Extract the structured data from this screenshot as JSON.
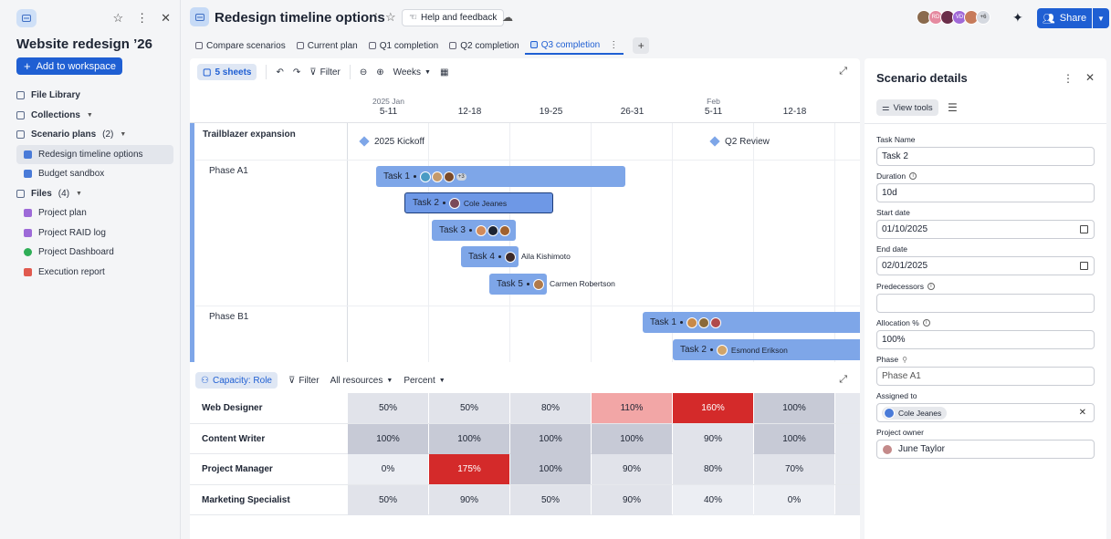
{
  "sidebar": {
    "title": "Website redesign ’26",
    "add_button": "Add to workspace",
    "items": [
      {
        "label": "File Library",
        "color": "#5b6b8a"
      },
      {
        "label": "Collections",
        "color": "#5b6b8a"
      },
      {
        "label": "Scenario plans",
        "count": "(2)",
        "color": "#5b6b8a"
      },
      {
        "label": "Redesign timeline options",
        "color": "#4a7bd8"
      },
      {
        "label": "Budget sandbox",
        "color": "#4a7bd8"
      },
      {
        "label": "Files",
        "count": "(4)",
        "color": "#5b6b8a"
      },
      {
        "label": "Project plan",
        "color": "#9d6ad8"
      },
      {
        "label": "Project RAID log",
        "color": "#9d6ad8"
      },
      {
        "label": "Project Dashboard",
        "color": "#2fae57"
      },
      {
        "label": "Execution report",
        "color": "#e05a4f"
      }
    ]
  },
  "header": {
    "title": "Redesign timeline options",
    "help": "Help and feedback",
    "share": "Share",
    "avatar_initials": [
      "RD",
      "VD"
    ],
    "avatar_more": "+6"
  },
  "tabs": [
    "Compare scenarios",
    "Current plan",
    "Q1 completion",
    "Q2 completion",
    "Q3 completion"
  ],
  "toolbar": {
    "sheets": "5 sheets",
    "filter": "Filter",
    "timescale": "Weeks"
  },
  "gantt": {
    "columns": [
      {
        "month": "2025 Jan",
        "range": "5-11"
      },
      {
        "month": "",
        "range": "12-18"
      },
      {
        "month": "",
        "range": "19-25"
      },
      {
        "month": "",
        "range": "26-31"
      },
      {
        "month": "Feb",
        "range": "5-11"
      },
      {
        "month": "",
        "range": "12-18"
      }
    ],
    "group": "Trailblazer expansion",
    "milestones": [
      "2025 Kickoff",
      "Q2 Review"
    ],
    "phases": [
      "Phase A1",
      "Phase B1"
    ],
    "tasks_a1": [
      {
        "label": "Task 1",
        "assignee": "",
        "more": "+3"
      },
      {
        "label": "Task 2",
        "assignee": "Cole Jeanes"
      },
      {
        "label": "Task 3",
        "assignee": ""
      },
      {
        "label": "Task 4",
        "assignee": "Aila Kishimoto"
      },
      {
        "label": "Task 5",
        "assignee": "Carmen Robertson"
      }
    ],
    "tasks_b1": [
      {
        "label": "Task 1",
        "assignee": ""
      },
      {
        "label": "Task 2",
        "assignee": "Esmond Erikson"
      }
    ]
  },
  "capacity": {
    "view": "Capacity: Role",
    "filter": "Filter",
    "resources": "All resources",
    "unit": "Percent",
    "rows": [
      {
        "role": "Web Designer",
        "values": [
          "50%",
          "50%",
          "80%",
          "110%",
          "160%",
          "100%"
        ]
      },
      {
        "role": "Content Writer",
        "values": [
          "100%",
          "100%",
          "100%",
          "100%",
          "90%",
          "100%"
        ]
      },
      {
        "role": "Project Manager",
        "values": [
          "0%",
          "175%",
          "100%",
          "90%",
          "80%",
          "70%"
        ]
      },
      {
        "role": "Marketing Specialist",
        "values": [
          "50%",
          "90%",
          "50%",
          "90%",
          "40%",
          "0%"
        ]
      }
    ],
    "colors": {
      "over_high": "#d42a2a",
      "over_low": "#f2a6a6",
      "full": "#c7cad6",
      "normal": "#e1e3ea",
      "low": "#eceef3"
    }
  },
  "details": {
    "title": "Scenario details",
    "view_tools": "View tools",
    "fields": {
      "task_name": {
        "label": "Task Name",
        "value": "Task 2"
      },
      "duration": {
        "label": "Duration",
        "value": "10d"
      },
      "start_date": {
        "label": "Start date",
        "value": "01/10/2025"
      },
      "end_date": {
        "label": "End date",
        "value": "02/01/2025"
      },
      "predecessors": {
        "label": "Predecessors",
        "value": ""
      },
      "allocation": {
        "label": "Allocation %",
        "value": "100%"
      },
      "phase": {
        "label": "Phase",
        "value": "Phase A1"
      },
      "assigned_to": {
        "label": "Assigned to",
        "value": "Cole Jeanes"
      },
      "project_owner": {
        "label": "Project owner",
        "value": "June Taylor"
      }
    }
  }
}
